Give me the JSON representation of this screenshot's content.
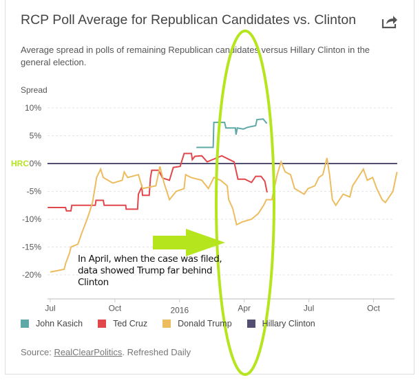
{
  "header": {
    "title": "RCP Poll Average for Republican Candidates vs. Clinton",
    "subtitle": "Average spread in polls of remaining Republican candidates versus Hillary Clinton in the general election."
  },
  "annotation": {
    "hrc_label": "HRC",
    "note": "In April, when the case was filed, data showed Trump far behind Clinton",
    "highlight_color": "#b5e51d"
  },
  "footer": {
    "source_label": "Source:",
    "source_link": "RealClearPolitics",
    "refreshed": ". Refreshed Daily"
  },
  "chart_data": {
    "type": "line",
    "title": "RCP Poll Average for Republican Candidates vs. Clinton",
    "ylabel": "Spread",
    "x_unit": "months since Jul 2015",
    "xlim": [
      -0.13,
      16.1
    ],
    "ylim": [
      -22,
      12
    ],
    "y_ticks": [
      {
        "v": 10,
        "label": "10%"
      },
      {
        "v": 5,
        "label": "5%"
      },
      {
        "v": 0,
        "label": "0%"
      },
      {
        "v": -5,
        "label": "-5%"
      },
      {
        "v": -10,
        "label": "-10%"
      },
      {
        "v": -15,
        "label": "-15%"
      },
      {
        "v": -20,
        "label": "-20%"
      }
    ],
    "x_ticks": [
      {
        "v": 0,
        "label": "Jul"
      },
      {
        "v": 3,
        "label": "Oct"
      },
      {
        "v": 6,
        "label": "2016"
      },
      {
        "v": 9,
        "label": "Apr"
      },
      {
        "v": 12,
        "label": "Jul"
      },
      {
        "v": 15,
        "label": "Oct"
      }
    ],
    "grid": true,
    "legend_position": "bottom",
    "series": [
      {
        "name": "John Kasich",
        "color": "#5fa8a8",
        "points": [
          [
            6.78,
            2.9
          ],
          [
            7.56,
            2.9
          ],
          [
            7.59,
            7.4
          ],
          [
            8.09,
            7.4
          ],
          [
            8.15,
            6.4
          ],
          [
            8.59,
            6.4
          ],
          [
            8.62,
            5.2
          ],
          [
            8.68,
            6.4
          ],
          [
            8.96,
            6.2
          ],
          [
            9.15,
            6.5
          ],
          [
            9.53,
            6.8
          ],
          [
            9.59,
            7.9
          ],
          [
            9.88,
            8.0
          ],
          [
            10.05,
            7.2
          ]
        ]
      },
      {
        "name": "Ted Cruz",
        "color": "#e0464a",
        "points": [
          [
            -0.12,
            -7.9
          ],
          [
            0.71,
            -7.9
          ],
          [
            0.75,
            -8.5
          ],
          [
            0.96,
            -8.5
          ],
          [
            1.0,
            -7.5
          ],
          [
            2.09,
            -7.5
          ],
          [
            2.12,
            -6.6
          ],
          [
            2.46,
            -6.6
          ],
          [
            2.5,
            -7.5
          ],
          [
            3.5,
            -7.5
          ],
          [
            3.52,
            -8.2
          ],
          [
            4.05,
            -8.2
          ],
          [
            4.09,
            -5.5
          ],
          [
            4.25,
            -4.2
          ],
          [
            4.28,
            -5.7
          ],
          [
            4.59,
            -5.7
          ],
          [
            4.65,
            -2.6
          ],
          [
            4.71,
            -1.2
          ],
          [
            5.03,
            -1.2
          ],
          [
            5.21,
            -2.6
          ],
          [
            5.53,
            -3.0
          ],
          [
            5.71,
            -0.7
          ],
          [
            6.03,
            -0.5
          ],
          [
            6.21,
            1.8
          ],
          [
            6.55,
            1.8
          ],
          [
            6.59,
            0.7
          ],
          [
            6.71,
            1.3
          ],
          [
            7.03,
            1.4
          ],
          [
            7.28,
            0.3
          ],
          [
            7.59,
            0.8
          ],
          [
            7.96,
            1.4
          ],
          [
            8.21,
            0.9
          ],
          [
            8.53,
            0.3
          ],
          [
            8.71,
            -2.8
          ],
          [
            9.03,
            -2.8
          ],
          [
            9.34,
            -3.4
          ],
          [
            9.53,
            -2.3
          ],
          [
            9.78,
            -2.3
          ],
          [
            9.96,
            -3.2
          ],
          [
            10.06,
            -5.2
          ]
        ]
      },
      {
        "name": "Donald Trump",
        "color": "#ecbc5e",
        "points": [
          [
            0,
            -19.5
          ],
          [
            0.65,
            -19
          ],
          [
            0.71,
            -18
          ],
          [
            0.9,
            -16
          ],
          [
            0.96,
            -15
          ],
          [
            1.28,
            -14.5
          ],
          [
            1.46,
            -12.5
          ],
          [
            1.71,
            -10
          ],
          [
            1.84,
            -8.5
          ],
          [
            1.96,
            -7
          ],
          [
            2.09,
            -4
          ],
          [
            2.15,
            -2.5
          ],
          [
            2.34,
            -1
          ],
          [
            2.46,
            -2.5
          ],
          [
            2.9,
            -3.5
          ],
          [
            3.34,
            -3
          ],
          [
            3.43,
            -1.5
          ],
          [
            3.59,
            -2.5
          ],
          [
            4.09,
            -2
          ],
          [
            4.28,
            -4.5
          ],
          [
            4.9,
            -4
          ],
          [
            5.09,
            -0.5
          ],
          [
            5.28,
            -3.5
          ],
          [
            5.53,
            -6.5
          ],
          [
            5.84,
            -5
          ],
          [
            6.21,
            -4.5
          ],
          [
            6.28,
            -2
          ],
          [
            6.53,
            -2.5
          ],
          [
            7.03,
            -3
          ],
          [
            7.34,
            -4.5
          ],
          [
            7.59,
            -2.5
          ],
          [
            7.9,
            -3
          ],
          [
            8.21,
            -4
          ],
          [
            8.28,
            -6.5
          ],
          [
            8.46,
            -8
          ],
          [
            8.65,
            -11
          ],
          [
            8.9,
            -10.5
          ],
          [
            9.34,
            -10
          ],
          [
            9.65,
            -9
          ],
          [
            9.9,
            -7.5
          ],
          [
            10.03,
            -6.5
          ],
          [
            10.28,
            -6.5
          ],
          [
            10.53,
            -2
          ],
          [
            10.71,
            0.3
          ],
          [
            10.9,
            -1.5
          ],
          [
            11.15,
            -2
          ],
          [
            11.34,
            -4.5
          ],
          [
            11.78,
            -5.5
          ],
          [
            11.96,
            -4.5
          ],
          [
            12.28,
            -4
          ],
          [
            12.46,
            -2.5
          ],
          [
            12.65,
            -2
          ],
          [
            12.84,
            1
          ],
          [
            12.96,
            -2
          ],
          [
            13.09,
            -6.5
          ],
          [
            13.25,
            -7.5
          ],
          [
            13.59,
            -5.5
          ],
          [
            13.9,
            -6
          ],
          [
            14.03,
            -4
          ],
          [
            14.28,
            -2.5
          ],
          [
            14.53,
            -1
          ],
          [
            14.71,
            -3
          ],
          [
            14.96,
            -2.5
          ],
          [
            15.15,
            -4.5
          ],
          [
            15.4,
            -6.5
          ],
          [
            15.55,
            -7
          ],
          [
            15.9,
            -5
          ],
          [
            16.09,
            -1.5
          ]
        ]
      },
      {
        "name": "Hillary Clinton",
        "color": "#514e72",
        "points": [
          [
            -0.13,
            0
          ],
          [
            16.1,
            0
          ]
        ]
      }
    ]
  }
}
